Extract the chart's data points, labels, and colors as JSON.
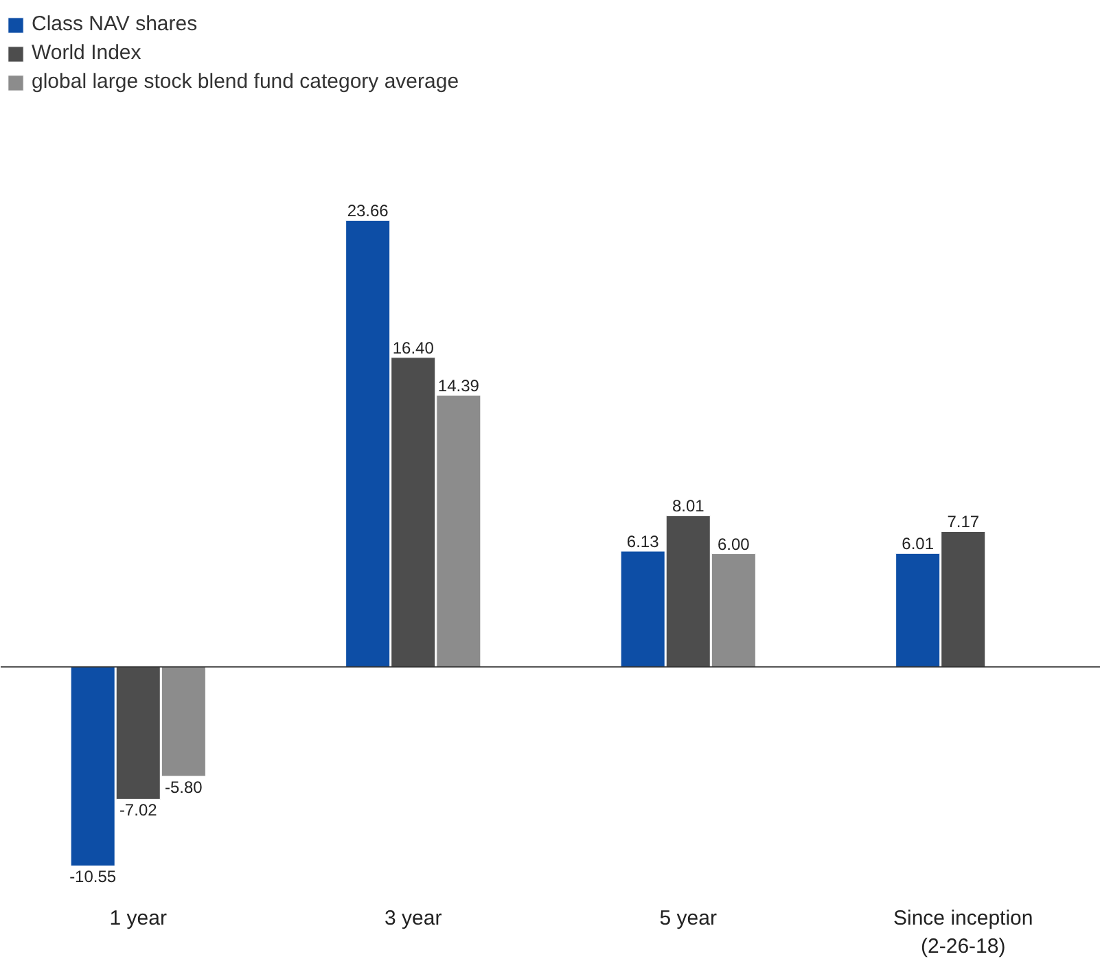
{
  "chart_data": {
    "type": "bar",
    "categories": [
      "1 year",
      "3 year",
      "5 year",
      "Since inception\n(2-26-18)"
    ],
    "series": [
      {
        "name": "Class NAV shares",
        "color": "#0d4ea6",
        "values": [
          -10.55,
          23.66,
          6.13,
          6.01
        ],
        "value_labels": [
          "-10.55",
          "23.66",
          "6.13",
          "6.01"
        ]
      },
      {
        "name": "World Index",
        "color": "#4d4d4d",
        "values": [
          -7.02,
          16.4,
          8.01,
          7.17
        ],
        "value_labels": [
          "-7.02",
          "16.40",
          "8.01",
          "7.17"
        ]
      },
      {
        "name": "global large stock blend fund category average",
        "color": "#8c8c8c",
        "values": [
          -5.8,
          14.39,
          6.0,
          null
        ],
        "value_labels": [
          "-5.80",
          "14.39",
          "6.00",
          null
        ]
      }
    ],
    "legend": "top left",
    "grid": false
  }
}
